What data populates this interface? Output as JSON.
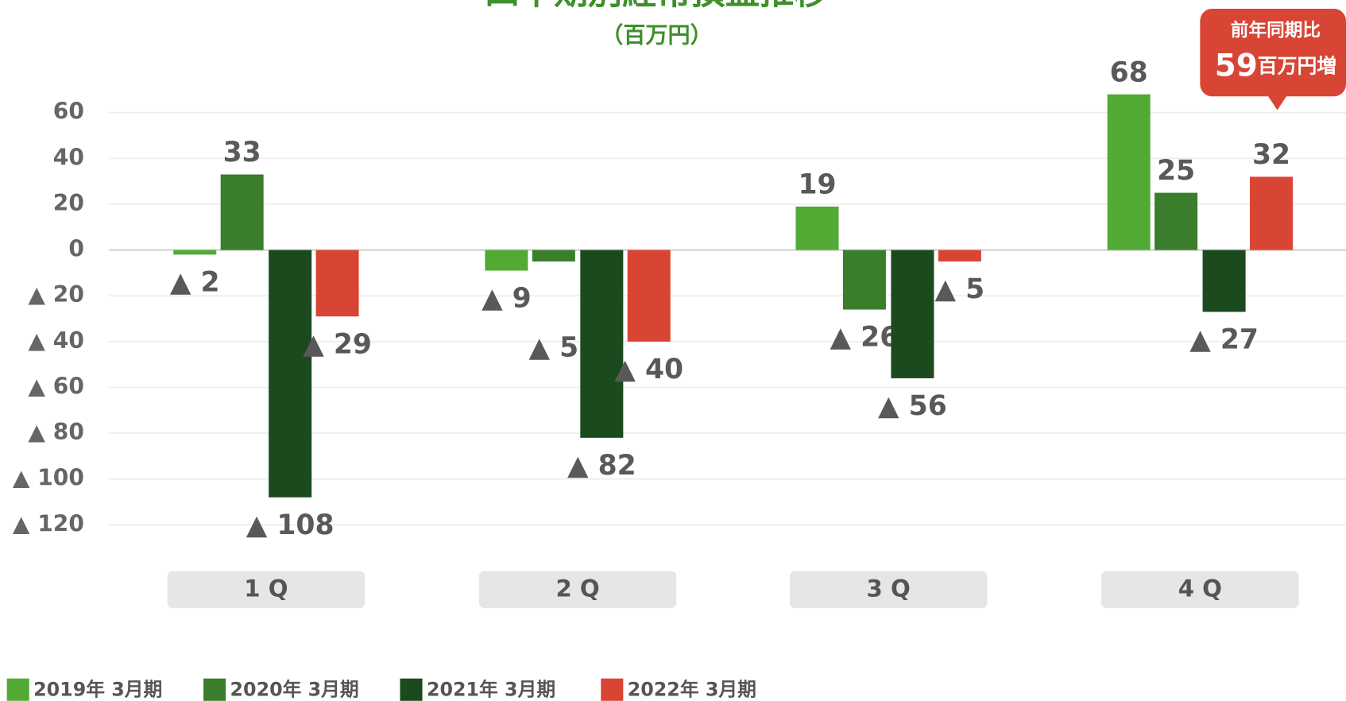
{
  "chart_data": {
    "type": "bar",
    "title": "四半期別経常損益推移",
    "subtitle": "（百万円）",
    "categories": [
      "1 Q",
      "2 Q",
      "3 Q",
      "4 Q"
    ],
    "series": [
      {
        "name": "2019年 3月期",
        "color": "#52aa35",
        "values": [
          -2,
          -9,
          19,
          68
        ],
        "value_labels": [
          "▲ 2",
          "▲ 9",
          "19",
          "68"
        ]
      },
      {
        "name": "2020年 3月期",
        "color": "#3a7d2a",
        "values": [
          33,
          -5,
          -26,
          25
        ],
        "value_labels": [
          "33",
          "▲ 5",
          "▲ 26",
          "25"
        ]
      },
      {
        "name": "2021年 3月期",
        "color": "#1c4a1f",
        "values": [
          -108,
          -82,
          -56,
          -27
        ],
        "value_labels": [
          "▲ 108",
          "▲ 82",
          "▲ 56",
          "▲ 27"
        ]
      },
      {
        "name": "2022年 3月期",
        "color": "#d94535",
        "values": [
          -29,
          -40,
          -5,
          32
        ],
        "value_labels": [
          "▲ 29",
          "▲ 40",
          "▲ 5",
          "32"
        ]
      }
    ],
    "ylim": [
      -120,
      60
    ],
    "yticks": [
      60,
      40,
      20,
      0,
      {
        "value": -20,
        "label": "▲ 20"
      },
      {
        "value": -40,
        "label": "▲ 40"
      },
      {
        "value": -60,
        "label": "▲ 60"
      },
      {
        "value": -80,
        "label": "▲ 80"
      },
      {
        "value": -100,
        "label": "▲ 100"
      },
      {
        "value": -120,
        "label": "▲ 120"
      }
    ],
    "grid": true,
    "legend": "bottom",
    "annotation": {
      "text": "前年同期比",
      "value": 59,
      "unit": "百万円増"
    }
  }
}
